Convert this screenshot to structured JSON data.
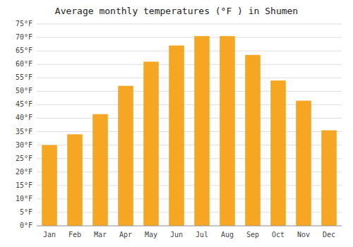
{
  "chart_data": {
    "type": "bar",
    "title": "Average monthly temperatures (°F ) in Shumen",
    "categories": [
      "Jan",
      "Feb",
      "Mar",
      "Apr",
      "May",
      "Jun",
      "Jul",
      "Aug",
      "Sep",
      "Oct",
      "Nov",
      "Dec"
    ],
    "values": [
      30,
      34,
      41.5,
      52,
      61,
      67,
      70.5,
      70.5,
      63.5,
      54,
      46.5,
      35.5
    ],
    "color": "#F5A623",
    "ylim": [
      0,
      75
    ],
    "yticks": [
      {
        "value": 0,
        "label": "0°F"
      },
      {
        "value": 5,
        "label": "5°F"
      },
      {
        "value": 10,
        "label": "10°F"
      },
      {
        "value": 15,
        "label": "15°F"
      },
      {
        "value": 20,
        "label": "20°F"
      },
      {
        "value": 25,
        "label": "25°F"
      },
      {
        "value": 30,
        "label": "30°F"
      },
      {
        "value": 35,
        "label": "35°F"
      },
      {
        "value": 40,
        "label": "40°F"
      },
      {
        "value": 45,
        "label": "45°F"
      },
      {
        "value": 50,
        "label": "50°F"
      },
      {
        "value": 55,
        "label": "55°F"
      },
      {
        "value": 60,
        "label": "60°F"
      },
      {
        "value": 65,
        "label": "65°F"
      },
      {
        "value": 70,
        "label": "70°F"
      },
      {
        "value": 75,
        "label": "75°F"
      }
    ],
    "grid": true
  }
}
